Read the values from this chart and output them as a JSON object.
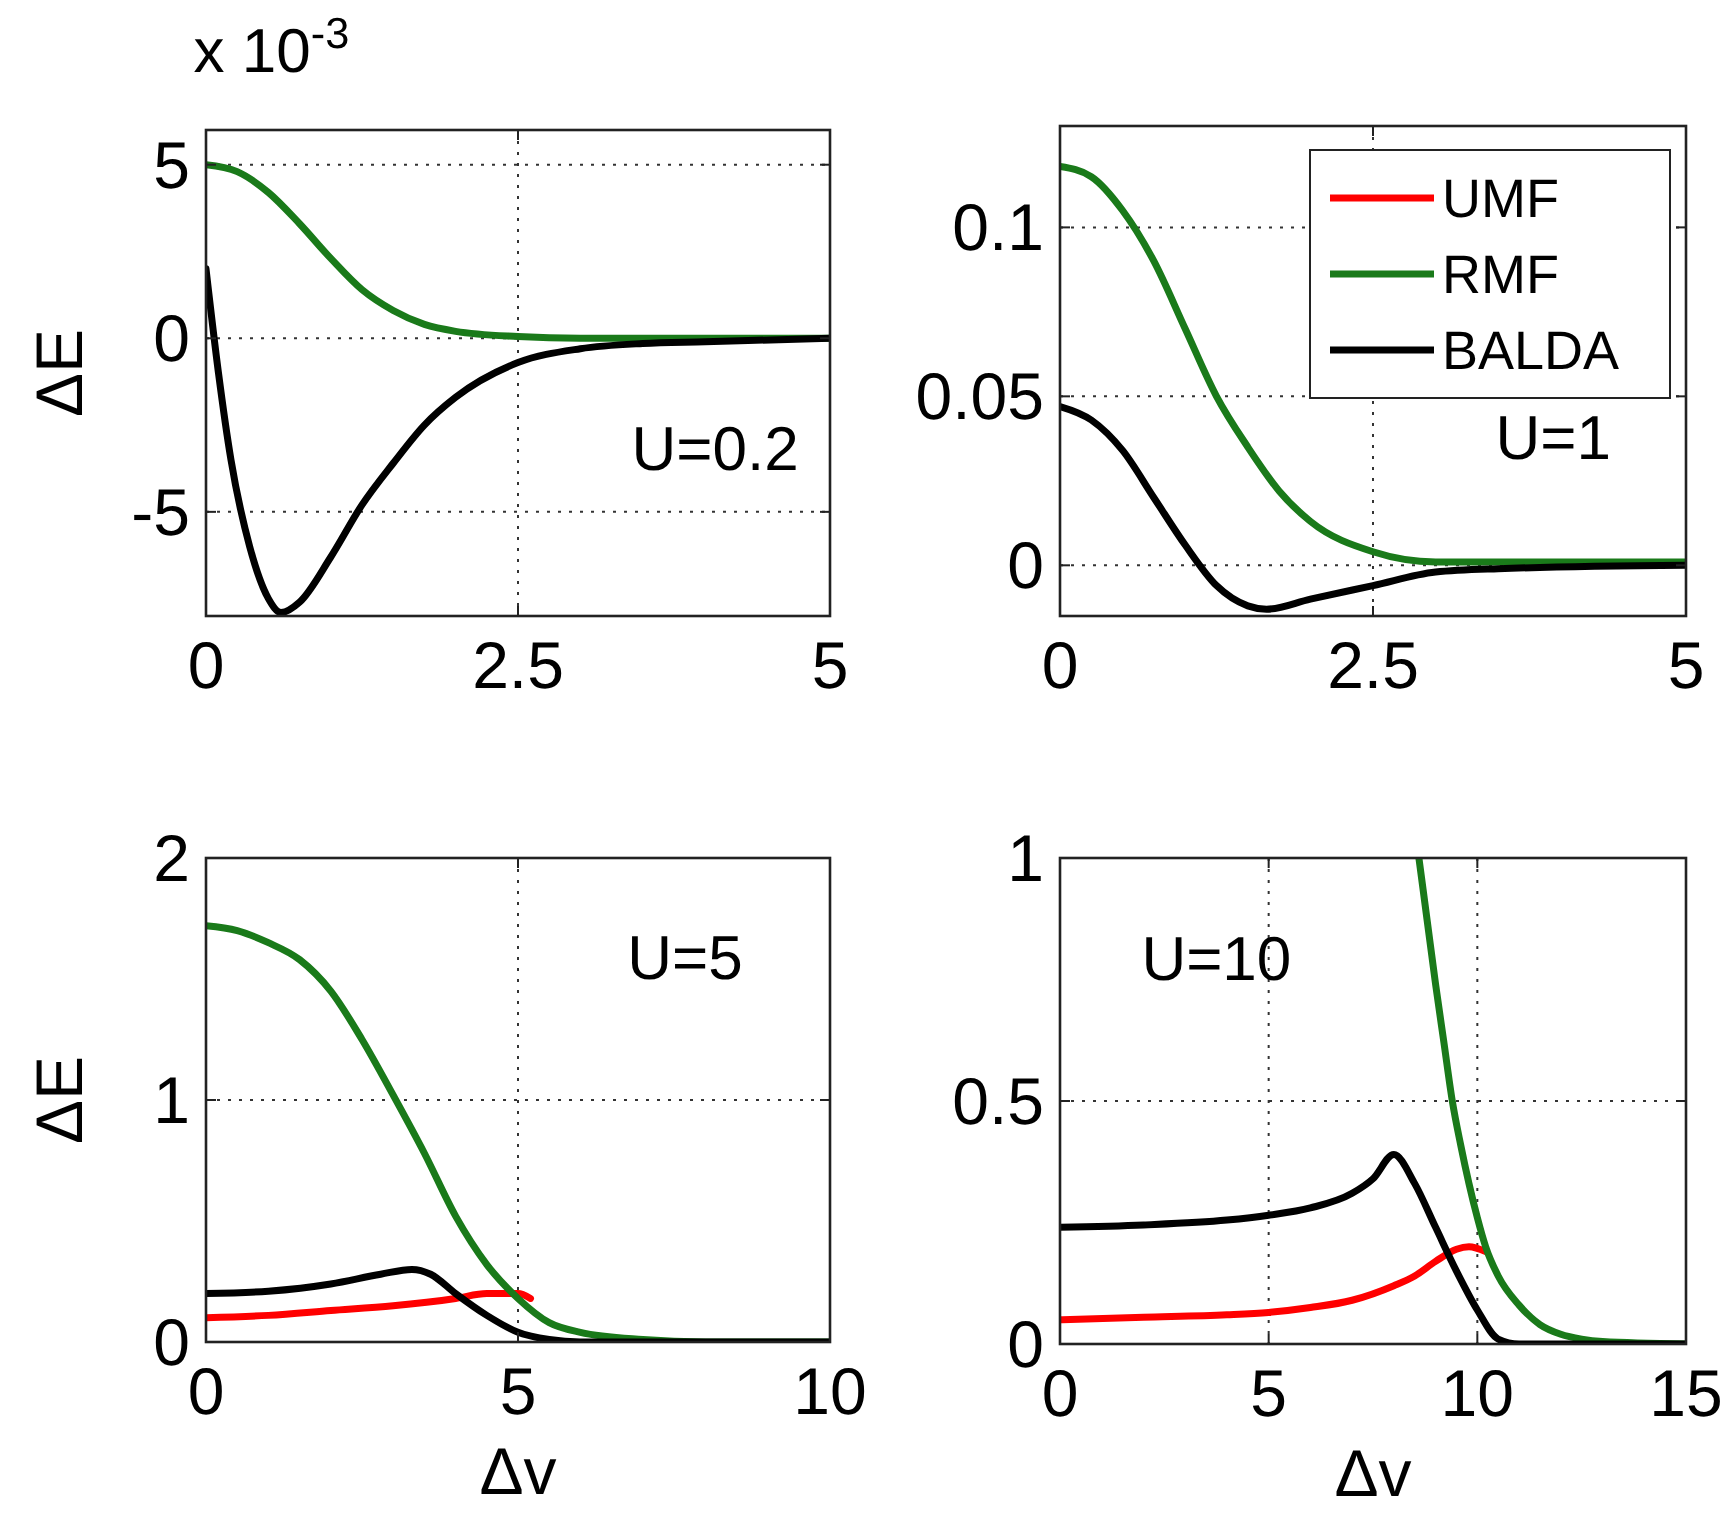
{
  "chart_data": [
    {
      "type": "line",
      "ylabel": "ΔE",
      "annotations": [
        "x 10$^{-3}$",
        "U=0.2"
      ],
      "xlim": [
        0,
        5
      ],
      "xticks": [
        0,
        2.5,
        5
      ],
      "ylim": [
        -8,
        6
      ],
      "yticks": [
        -5,
        0,
        5
      ],
      "grid": true,
      "series": [
        {
          "color": "#1a7a1a",
          "x": [
            0,
            0.25,
            0.5,
            0.75,
            1,
            1.25,
            1.5,
            1.75,
            2,
            2.5,
            3,
            5
          ],
          "values": [
            5,
            4.8,
            4.2,
            3.3,
            2.3,
            1.4,
            0.8,
            0.4,
            0.2,
            0.05,
            0,
            0
          ]
        },
        {
          "color": "#000000",
          "x": [
            0,
            0.1,
            0.2,
            0.35,
            0.5,
            0.6,
            0.75,
            1,
            1.25,
            1.5,
            1.75,
            2,
            2.5,
            3,
            3.5,
            4,
            5
          ],
          "values": [
            2,
            -1,
            -3.5,
            -6,
            -7.5,
            -7.9,
            -7.6,
            -6.3,
            -4.8,
            -3.6,
            -2.5,
            -1.7,
            -0.7,
            -0.3,
            -0.15,
            -0.1,
            0
          ]
        }
      ]
    },
    {
      "type": "line",
      "annotations": [
        "U=1"
      ],
      "xlim": [
        0,
        5
      ],
      "xticks": [
        0,
        2.5,
        5
      ],
      "ylim": [
        -0.015,
        0.13
      ],
      "yticks": [
        0,
        0.05,
        0.1
      ],
      "grid": true,
      "legend": "top right",
      "series": [
        {
          "name": "UMF",
          "color": "#ff0000"
        },
        {
          "name": "RMF",
          "color": "#1a7a1a",
          "x": [
            0,
            0.25,
            0.5,
            0.75,
            1,
            1.25,
            1.5,
            1.75,
            2,
            2.5,
            3,
            5
          ],
          "values": [
            0.118,
            0.115,
            0.105,
            0.09,
            0.07,
            0.05,
            0.035,
            0.022,
            0.013,
            0.004,
            0.001,
            0.001
          ]
        },
        {
          "name": "BALDA",
          "color": "#000000",
          "x": [
            0,
            0.25,
            0.5,
            0.75,
            1,
            1.25,
            1.5,
            1.65,
            2,
            2.5,
            3,
            3.5,
            5
          ],
          "values": [
            0.047,
            0.043,
            0.034,
            0.02,
            0.006,
            -0.006,
            -0.012,
            -0.013,
            -0.01,
            -0.006,
            -0.002,
            -0.001,
            0
          ]
        }
      ]
    },
    {
      "type": "line",
      "xlabel": "Δv",
      "ylabel": "ΔE",
      "annotations": [
        "U=5"
      ],
      "xlim": [
        0,
        10
      ],
      "xticks": [
        0,
        5,
        10
      ],
      "ylim": [
        0,
        2
      ],
      "yticks": [
        0,
        1,
        2
      ],
      "grid": true,
      "series": [
        {
          "color": "#ff0000",
          "x": [
            0,
            1,
            2,
            3,
            4,
            4.5,
            5,
            5.2
          ],
          "values": [
            0.1,
            0.11,
            0.13,
            0.15,
            0.18,
            0.2,
            0.2,
            0.18
          ]
        },
        {
          "color": "#1a7a1a",
          "x": [
            0,
            0.5,
            1,
            1.5,
            2,
            2.5,
            3,
            3.5,
            4,
            4.5,
            5,
            5.5,
            6,
            7,
            8,
            10
          ],
          "values": [
            1.72,
            1.7,
            1.65,
            1.58,
            1.45,
            1.25,
            1.02,
            0.78,
            0.52,
            0.32,
            0.18,
            0.08,
            0.04,
            0.01,
            0,
            0
          ]
        },
        {
          "color": "#000000",
          "x": [
            0,
            1,
            2,
            2.8,
            3.3,
            3.6,
            4,
            4.5,
            5,
            5.5,
            6,
            10
          ],
          "values": [
            0.2,
            0.21,
            0.24,
            0.28,
            0.3,
            0.28,
            0.2,
            0.11,
            0.04,
            0.01,
            0,
            0
          ]
        }
      ]
    },
    {
      "type": "line",
      "xlabel": "Δv",
      "annotations": [
        "U=10"
      ],
      "xlim": [
        0,
        15
      ],
      "xticks": [
        0,
        5,
        10,
        15
      ],
      "ylim": [
        0,
        1
      ],
      "yticks": [
        0,
        0.5,
        1
      ],
      "grid": true,
      "series": [
        {
          "color": "#ff0000",
          "x": [
            0,
            2,
            4,
            5,
            6,
            7,
            8,
            8.5,
            9,
            9.5,
            9.8,
            10.2
          ],
          "values": [
            0.05,
            0.055,
            0.06,
            0.065,
            0.075,
            0.09,
            0.12,
            0.14,
            0.17,
            0.195,
            0.2,
            0.19
          ]
        },
        {
          "color": "#1a7a1a",
          "x": [
            8.6,
            8.8,
            9,
            9.2,
            9.4,
            9.6,
            9.8,
            10,
            10.2,
            10.5,
            11,
            11.5,
            12,
            12.5,
            13,
            15
          ],
          "values": [
            1,
            0.87,
            0.74,
            0.62,
            0.5,
            0.41,
            0.33,
            0.26,
            0.2,
            0.14,
            0.08,
            0.04,
            0.02,
            0.01,
            0.005,
            0
          ]
        },
        {
          "color": "#000000",
          "x": [
            0,
            2,
            4,
            5,
            6,
            7,
            7.5,
            8,
            8.5,
            9,
            9.5,
            10,
            10.5,
            11,
            15
          ],
          "values": [
            0.24,
            0.245,
            0.255,
            0.265,
            0.28,
            0.31,
            0.34,
            0.39,
            0.33,
            0.24,
            0.15,
            0.07,
            0.01,
            0,
            0
          ]
        }
      ]
    }
  ]
}
